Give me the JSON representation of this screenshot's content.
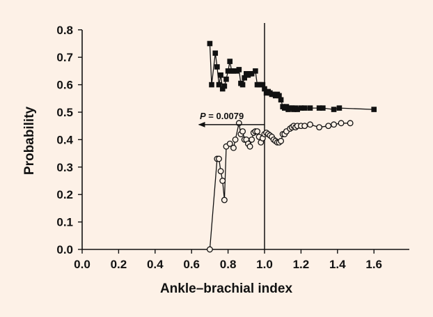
{
  "colors": {
    "background": "#fdf1e7",
    "ink": "#111111"
  },
  "chart_data": {
    "type": "line",
    "xlabel": "Ankle–brachial index",
    "ylabel": "Probability",
    "xlim": [
      0.0,
      1.75
    ],
    "ylim": [
      0.0,
      0.8
    ],
    "xticks": [
      "0.0",
      "0.2",
      "0.4",
      "0.6",
      "0.8",
      "1.0",
      "1.2",
      "1.4",
      "1.6"
    ],
    "yticks": [
      "0.0",
      "0.1",
      "0.2",
      "0.3",
      "0.4",
      "0.5",
      "0.6",
      "0.7",
      "0.8"
    ],
    "grid": false,
    "reference_line": {
      "x": 1.0
    },
    "annotation": {
      "p_label": "P",
      "p_value": "= 0.0079",
      "arrow_from_x": 1.0,
      "arrow_to_x": 0.64,
      "y": 0.48
    },
    "series": [
      {
        "marker": "filled-square",
        "points": [
          [
            0.7,
            0.75
          ],
          [
            0.71,
            0.6
          ],
          [
            0.73,
            0.715
          ],
          [
            0.74,
            0.665
          ],
          [
            0.75,
            0.6
          ],
          [
            0.76,
            0.635
          ],
          [
            0.77,
            0.585
          ],
          [
            0.78,
            0.595
          ],
          [
            0.79,
            0.62
          ],
          [
            0.8,
            0.65
          ],
          [
            0.81,
            0.685
          ],
          [
            0.82,
            0.65
          ],
          [
            0.83,
            0.65
          ],
          [
            0.85,
            0.65
          ],
          [
            0.86,
            0.655
          ],
          [
            0.87,
            0.605
          ],
          [
            0.88,
            0.6
          ],
          [
            0.89,
            0.625
          ],
          [
            0.9,
            0.64
          ],
          [
            0.91,
            0.635
          ],
          [
            0.92,
            0.64
          ],
          [
            0.93,
            0.64
          ],
          [
            0.95,
            0.65
          ],
          [
            0.96,
            0.6
          ],
          [
            0.97,
            0.6
          ],
          [
            0.98,
            0.6
          ],
          [
            0.99,
            0.6
          ],
          [
            1.0,
            0.585
          ],
          [
            1.01,
            0.57
          ],
          [
            1.02,
            0.575
          ],
          [
            1.03,
            0.57
          ],
          [
            1.04,
            0.565
          ],
          [
            1.05,
            0.565
          ],
          [
            1.06,
            0.56
          ],
          [
            1.07,
            0.565
          ],
          [
            1.08,
            0.56
          ],
          [
            1.09,
            0.545
          ],
          [
            1.1,
            0.52
          ],
          [
            1.11,
            0.515
          ],
          [
            1.12,
            0.52
          ],
          [
            1.13,
            0.51
          ],
          [
            1.14,
            0.515
          ],
          [
            1.15,
            0.515
          ],
          [
            1.16,
            0.51
          ],
          [
            1.17,
            0.515
          ],
          [
            1.18,
            0.51
          ],
          [
            1.2,
            0.515
          ],
          [
            1.22,
            0.515
          ],
          [
            1.25,
            0.515
          ],
          [
            1.3,
            0.515
          ],
          [
            1.32,
            0.515
          ],
          [
            1.38,
            0.51
          ],
          [
            1.41,
            0.515
          ],
          [
            1.6,
            0.51
          ]
        ]
      },
      {
        "marker": "open-circle",
        "points": [
          [
            0.7,
            0.0
          ],
          [
            0.74,
            0.33
          ],
          [
            0.75,
            0.33
          ],
          [
            0.76,
            0.285
          ],
          [
            0.77,
            0.25
          ],
          [
            0.78,
            0.18
          ],
          [
            0.79,
            0.375
          ],
          [
            0.81,
            0.385
          ],
          [
            0.83,
            0.37
          ],
          [
            0.84,
            0.4
          ],
          [
            0.86,
            0.46
          ],
          [
            0.87,
            0.42
          ],
          [
            0.88,
            0.43
          ],
          [
            0.89,
            0.4
          ],
          [
            0.9,
            0.4
          ],
          [
            0.91,
            0.385
          ],
          [
            0.92,
            0.375
          ],
          [
            0.93,
            0.4
          ],
          [
            0.94,
            0.425
          ],
          [
            0.95,
            0.43
          ],
          [
            0.96,
            0.43
          ],
          [
            0.97,
            0.41
          ],
          [
            0.98,
            0.39
          ],
          [
            0.99,
            0.405
          ],
          [
            1.0,
            0.42
          ],
          [
            1.01,
            0.425
          ],
          [
            1.02,
            0.42
          ],
          [
            1.03,
            0.415
          ],
          [
            1.04,
            0.41
          ],
          [
            1.05,
            0.4
          ],
          [
            1.06,
            0.395
          ],
          [
            1.07,
            0.39
          ],
          [
            1.08,
            0.39
          ],
          [
            1.09,
            0.395
          ],
          [
            1.1,
            0.42
          ],
          [
            1.11,
            0.42
          ],
          [
            1.12,
            0.43
          ],
          [
            1.14,
            0.44
          ],
          [
            1.15,
            0.445
          ],
          [
            1.16,
            0.45
          ],
          [
            1.17,
            0.445
          ],
          [
            1.18,
            0.45
          ],
          [
            1.2,
            0.45
          ],
          [
            1.22,
            0.45
          ],
          [
            1.25,
            0.455
          ],
          [
            1.3,
            0.445
          ],
          [
            1.35,
            0.45
          ],
          [
            1.38,
            0.455
          ],
          [
            1.42,
            0.46
          ],
          [
            1.47,
            0.46
          ]
        ]
      }
    ]
  }
}
